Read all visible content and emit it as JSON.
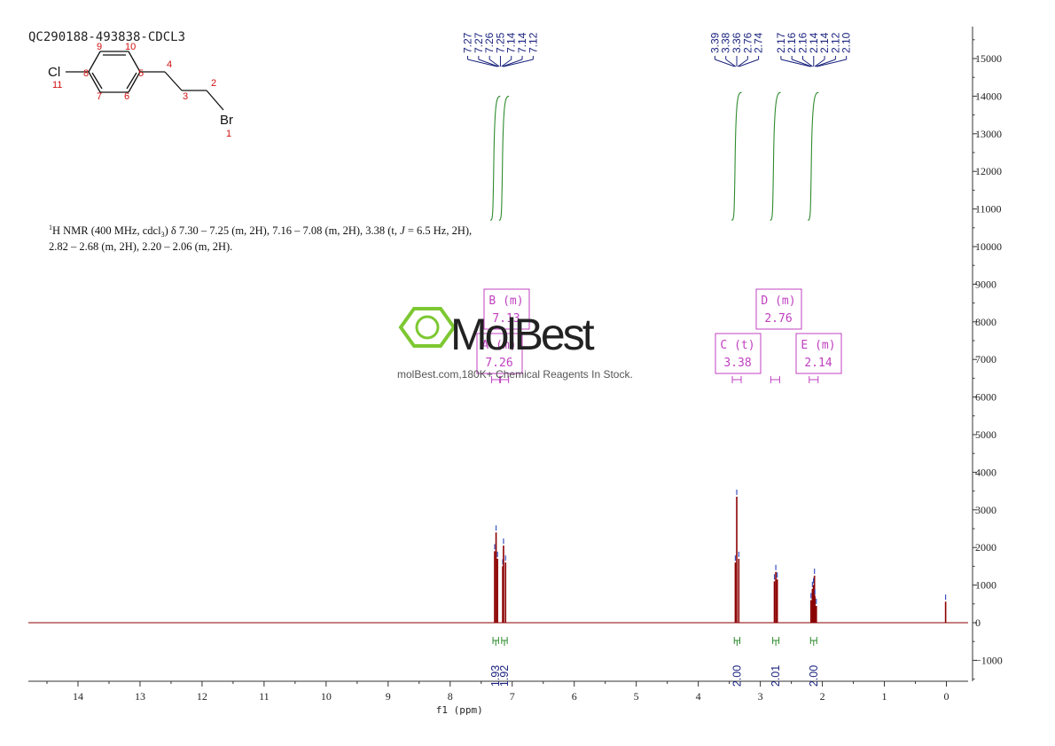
{
  "sample_id": "QC290188-493838-CDCL3",
  "structure": {
    "cl_label": "Cl",
    "br_label": "Br",
    "atom_numbers": [
      "1",
      "2",
      "3",
      "4",
      "5",
      "6",
      "7",
      "8",
      "9",
      "10",
      "11"
    ]
  },
  "description": {
    "nucleus_sup": "1",
    "line1_a": "H NMR (400 MHz, cdcl",
    "line1_sub": "3",
    "line1_b": ") δ 7.30 – 7.25 (m, 2H), 7.16 – 7.08 (m, 2H), 3.38 (t, ",
    "line1_j": "J",
    "line1_c": " = 6.5 Hz, 2H),",
    "line2": "2.82 – 2.68 (m, 2H), 2.20 – 2.06 (m, 2H)."
  },
  "watermark": {
    "brand": "MolBest",
    "tagline": "molBest.com,180K+ Chemical Reagents In Stock."
  },
  "colors": {
    "spectrum": "#8b0000",
    "peak_label": "#1a237e",
    "integral": "#2e8b2e",
    "multiplet": "#c040c0",
    "axis": "#333333",
    "watermark_green": "#7dc832",
    "watermark_dark": "#222222"
  },
  "chart_data": {
    "type": "line",
    "xlabel": "f1 (ppm)",
    "x_reversed": true,
    "xlim": [
      14.8,
      -0.35
    ],
    "ylim": [
      -1500,
      15800
    ],
    "x_ticks": [
      14,
      13,
      12,
      11,
      10,
      9,
      8,
      7,
      6,
      5,
      4,
      3,
      2,
      1,
      0
    ],
    "y_ticks": [
      -1000,
      0,
      1000,
      2000,
      3000,
      4000,
      5000,
      6000,
      7000,
      8000,
      9000,
      10000,
      11000,
      12000,
      13000,
      14000,
      15000
    ],
    "peaks": [
      {
        "ppm": 7.27,
        "height": 1900
      },
      {
        "ppm": 7.26,
        "height": 2400
      },
      {
        "ppm": 7.25,
        "height": 1700
      },
      {
        "ppm": 7.14,
        "height": 1500
      },
      {
        "ppm": 7.14,
        "height": 2050
      },
      {
        "ppm": 7.12,
        "height": 1600
      },
      {
        "ppm": 3.39,
        "height": 1600
      },
      {
        "ppm": 3.38,
        "height": 3350
      },
      {
        "ppm": 3.36,
        "height": 1700
      },
      {
        "ppm": 2.76,
        "height": 1100
      },
      {
        "ppm": 2.75,
        "height": 1350
      },
      {
        "ppm": 2.74,
        "height": 1150
      },
      {
        "ppm": 2.17,
        "height": 600
      },
      {
        "ppm": 2.16,
        "height": 900
      },
      {
        "ppm": 2.14,
        "height": 1250
      },
      {
        "ppm": 2.13,
        "height": 1000
      },
      {
        "ppm": 2.12,
        "height": 700
      },
      {
        "ppm": 2.11,
        "height": 450
      },
      {
        "ppm": 0.0,
        "height": 560
      }
    ],
    "peak_label_groups": [
      {
        "labels": [
          "7.27",
          "7.27",
          "7.26",
          "7.25",
          "7.14",
          "7.14",
          "7.12"
        ],
        "anchor_ppm": 7.19
      },
      {
        "labels": [
          "3.39",
          "3.38",
          "3.36",
          "2.76",
          "2.74"
        ],
        "anchor_ppm": 3.38
      },
      {
        "labels": [
          "2.17",
          "2.16",
          "2.16",
          "2.14",
          "2.14",
          "2.12",
          "2.10"
        ],
        "anchor_ppm": 2.14
      }
    ],
    "integrals": [
      {
        "value": "1.93",
        "from": 7.31,
        "to": 7.22,
        "top": 14000,
        "bottom": 10700
      },
      {
        "value": "1.92",
        "from": 7.17,
        "to": 7.08,
        "top": 14000,
        "bottom": 10700
      },
      {
        "value": "2.00",
        "from": 3.42,
        "to": 3.33,
        "top": 14100,
        "bottom": 10700
      },
      {
        "value": "2.01",
        "from": 2.8,
        "to": 2.7,
        "top": 14100,
        "bottom": 10700
      },
      {
        "value": "2.00",
        "from": 2.19,
        "to": 2.09,
        "top": 14100,
        "bottom": 10700
      }
    ],
    "multiplets": [
      {
        "letter": "B (m)",
        "shift": "7.13",
        "ppm": 7.13
      },
      {
        "letter": "A (m)",
        "shift": "7.26",
        "ppm": 7.26
      },
      {
        "letter": "C (t)",
        "shift": "3.38",
        "ppm": 3.38
      },
      {
        "letter": "D (m)",
        "shift": "2.76",
        "ppm": 2.76
      },
      {
        "letter": "E (m)",
        "shift": "2.14",
        "ppm": 2.14
      }
    ]
  }
}
